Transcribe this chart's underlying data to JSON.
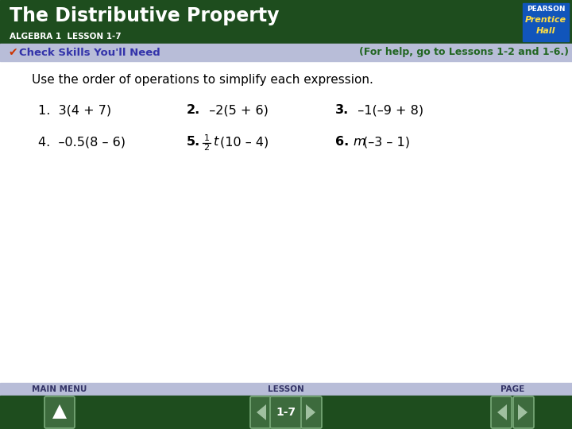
{
  "title": "The Distributive Property",
  "subtitle": "ALGEBRA 1  LESSON 1-7",
  "header_bg": "#1e4d1e",
  "header_text_color": "#ffffff",
  "subheader_bg": "#b8bdd8",
  "subheader_text": "Check Skills You'll Need",
  "subheader_help": "(For help, go to Lessons 1-2 and 1-6.)",
  "subheader_text_color": "#3333aa",
  "subheader_help_color": "#226622",
  "body_bg": "#ffffff",
  "instruction": "Use the order of operations to simplify each expression.",
  "footer_top_bg": "#b8bdd8",
  "footer_bg": "#1e4d1e",
  "footer_label_color": "#c8d8c8",
  "nav_labels": [
    "MAIN MENU",
    "LESSON",
    "PAGE"
  ],
  "nav_center_text": "1-7",
  "pearson_box_bg": "#1155bb",
  "pearson_text": "PEARSON",
  "pearson_sub1": "Prentice",
  "pearson_sub2": "Hall"
}
